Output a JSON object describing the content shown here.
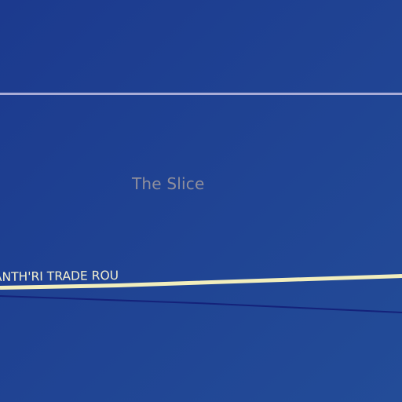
{
  "map": {
    "colors": {
      "space_top_left": "#1c3a8e",
      "space_bottom_right": "#234c98",
      "boundary_line": "#a9acd6",
      "trade_route": "#f2eebd",
      "trade_route_label": "#f4f1d0",
      "dark_route": "#14227a",
      "region_label": "#8f8f9c"
    },
    "region_label": "The Slice",
    "trade_route_label": "ANTH'RI TRADE ROUTE"
  }
}
